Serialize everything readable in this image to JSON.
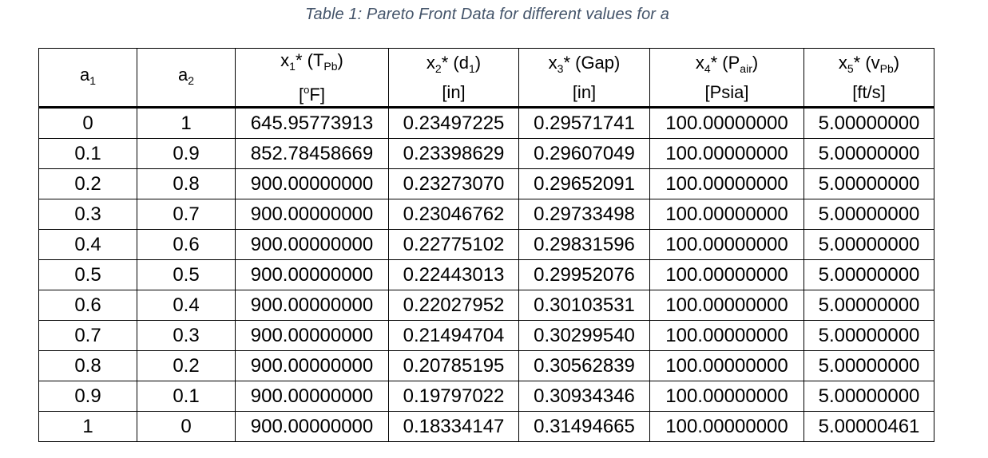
{
  "caption": "Table 1: Pareto Front Data for different values for a",
  "table": {
    "columns": [
      {
        "sym": "a",
        "sub": "1",
        "unit": ""
      },
      {
        "sym": "a",
        "sub": "2",
        "unit": ""
      },
      {
        "sym": "x",
        "sub": "1",
        "mid": "* (T",
        "sub2": "Pb",
        "end": ")",
        "unit_pre": "[",
        "unit_sup": "o",
        "unit_post": "F]"
      },
      {
        "sym": "x",
        "sub": "2",
        "mid": "* (d",
        "sub2": "1",
        "end": ")",
        "unit": "[in]"
      },
      {
        "sym": "x",
        "sub": "3",
        "mid": "* (Gap)",
        "unit": "[in]"
      },
      {
        "sym": "x",
        "sub": "4",
        "mid": "* (P",
        "sub2": "air",
        "end": ")",
        "unit": "[Psia]"
      },
      {
        "sym": "x",
        "sub": "5",
        "mid": "* (v",
        "sub2": "Pb",
        "end": ")",
        "unit": "[ft/s]"
      }
    ],
    "rows": [
      [
        "0",
        "1",
        "645.95773913",
        "0.23497225",
        "0.29571741",
        "100.00000000",
        "5.00000000"
      ],
      [
        "0.1",
        "0.9",
        "852.78458669",
        "0.23398629",
        "0.29607049",
        "100.00000000",
        "5.00000000"
      ],
      [
        "0.2",
        "0.8",
        "900.00000000",
        "0.23273070",
        "0.29652091",
        "100.00000000",
        "5.00000000"
      ],
      [
        "0.3",
        "0.7",
        "900.00000000",
        "0.23046762",
        "0.29733498",
        "100.00000000",
        "5.00000000"
      ],
      [
        "0.4",
        "0.6",
        "900.00000000",
        "0.22775102",
        "0.29831596",
        "100.00000000",
        "5.00000000"
      ],
      [
        "0.5",
        "0.5",
        "900.00000000",
        "0.22443013",
        "0.29952076",
        "100.00000000",
        "5.00000000"
      ],
      [
        "0.6",
        "0.4",
        "900.00000000",
        "0.22027952",
        "0.30103531",
        "100.00000000",
        "5.00000000"
      ],
      [
        "0.7",
        "0.3",
        "900.00000000",
        "0.21494704",
        "0.30299540",
        "100.00000000",
        "5.00000000"
      ],
      [
        "0.8",
        "0.2",
        "900.00000000",
        "0.20785195",
        "0.30562839",
        "100.00000000",
        "5.00000000"
      ],
      [
        "0.9",
        "0.1",
        "900.00000000",
        "0.19797022",
        "0.30934346",
        "100.00000000",
        "5.00000000"
      ],
      [
        "1",
        "0",
        "900.00000000",
        "0.18334147",
        "0.31494665",
        "100.00000000",
        "5.00000461"
      ]
    ]
  },
  "colors": {
    "caption": "#44546a",
    "border": "#000000"
  }
}
